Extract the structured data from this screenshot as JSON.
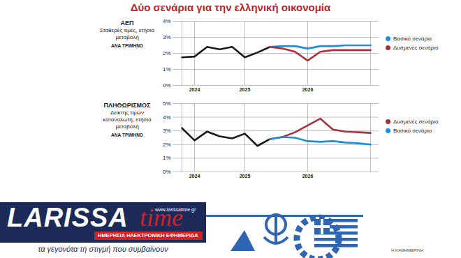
{
  "title": "Δύο σενάρια για την ελληνική οικονομία",
  "chart_data": [
    {
      "type": "line",
      "title": "ΑΕΠ",
      "subtitle": "Σταθερές τιμές, ετήσια μεταβολή",
      "annotations": [
        "ΑΝΑ ΤΡΙΜΗΝΟ"
      ],
      "categories": [
        null,
        "2024",
        null,
        null,
        null,
        "2025",
        null,
        null,
        null,
        null,
        "2026",
        null,
        null,
        null,
        null,
        null
      ],
      "series": [
        {
          "color": "#1a1a1a",
          "values": [
            1.75,
            1.8,
            2.4,
            2.25,
            2.4,
            1.75,
            2.05,
            2.4,
            null,
            null,
            null,
            null,
            null,
            null,
            null,
            null
          ]
        },
        {
          "name": "Βασικό σενάριο",
          "color": "#1e8fd5",
          "values": [
            null,
            null,
            null,
            null,
            null,
            null,
            null,
            2.4,
            2.45,
            2.45,
            2.3,
            2.45,
            2.45,
            2.5,
            2.5,
            2.5
          ]
        },
        {
          "name": "Δυσμενές σενάριο",
          "color": "#a8323e",
          "values": [
            null,
            null,
            null,
            null,
            null,
            null,
            null,
            2.4,
            2.3,
            2.1,
            1.55,
            2.1,
            2.2,
            2.2,
            2.2,
            2.2
          ]
        }
      ],
      "ylim": [
        0,
        4
      ],
      "yticks": [
        {
          "value": 0,
          "label": "0%"
        },
        {
          "value": 1,
          "label": "1%"
        },
        {
          "value": 2,
          "label": "2%"
        },
        {
          "value": 3,
          "label": "3%"
        },
        {
          "value": 4,
          "label": "4%"
        }
      ],
      "grid": true,
      "legend": "right"
    },
    {
      "type": "line",
      "title": "ΠΛΗΘΩΡΙΣΜΟΣ",
      "subtitle": "Δείκτης τιμών καταναλωτή, ετήσια μεταβολή",
      "annotations": [
        "ΑΝΑ ΤΡΙΜΗΝΟ"
      ],
      "categories": [
        null,
        "2024",
        null,
        null,
        null,
        "2025",
        null,
        null,
        null,
        null,
        "2026",
        null,
        null,
        null,
        null,
        null
      ],
      "series": [
        {
          "color": "#1a1a1a",
          "values": [
            3.2,
            2.3,
            2.95,
            2.6,
            2.45,
            2.8,
            1.9,
            2.4,
            null,
            null,
            null,
            null,
            null,
            null,
            null,
            null
          ]
        },
        {
          "name": "Δυσμενές σενάριο",
          "color": "#a8323e",
          "values": [
            null,
            null,
            null,
            null,
            null,
            null,
            null,
            2.4,
            2.55,
            2.9,
            3.4,
            3.9,
            3.1,
            2.95,
            2.9,
            2.85
          ]
        },
        {
          "name": "Βασικό σενάριο",
          "color": "#1e8fd5",
          "values": [
            null,
            null,
            null,
            null,
            null,
            null,
            null,
            2.4,
            2.55,
            2.5,
            2.25,
            2.2,
            2.25,
            2.15,
            2.1,
            2.0
          ]
        }
      ],
      "ylim": [
        0,
        5
      ],
      "yticks": [
        {
          "value": 0,
          "label": "0%"
        },
        {
          "value": 1,
          "label": "1%"
        },
        {
          "value": 2,
          "label": "2%"
        },
        {
          "value": 3,
          "label": "3%"
        },
        {
          "value": 4,
          "label": "4%"
        },
        {
          "value": 5,
          "label": "5%"
        }
      ],
      "grid": true,
      "legend": "right"
    }
  ],
  "banner": {
    "logo": "LARISSA",
    "logo_accent": "time",
    "url": "www.larissatime.gr",
    "subtitle": "ΗΜΕΡΗΣΙΑ ΗΛΕΚΤΡΟΝΙΚΗ ΕΦΗΜΕΡΙΔΑ",
    "tagline": "τα γεγονότα τη στιγμή που συμβαίνουν"
  },
  "source": "Η ΚΑΘΗΜΕΡΙΝΗ"
}
